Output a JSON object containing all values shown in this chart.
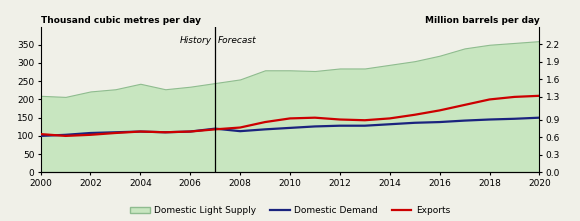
{
  "years": [
    2000,
    2001,
    2002,
    2003,
    2004,
    2005,
    2006,
    2007,
    2008,
    2009,
    2010,
    2011,
    2012,
    2013,
    2014,
    2015,
    2016,
    2017,
    2018,
    2019,
    2020
  ],
  "supply": [
    210,
    207,
    222,
    228,
    243,
    228,
    235,
    245,
    255,
    280,
    280,
    278,
    285,
    285,
    295,
    305,
    320,
    340,
    350,
    355,
    360
  ],
  "demand": [
    100,
    103,
    108,
    110,
    112,
    110,
    112,
    120,
    113,
    118,
    122,
    126,
    128,
    128,
    132,
    136,
    138,
    142,
    145,
    147,
    150
  ],
  "exports": [
    105,
    100,
    103,
    108,
    112,
    110,
    112,
    118,
    123,
    138,
    148,
    150,
    145,
    143,
    148,
    158,
    170,
    185,
    200,
    207,
    210
  ],
  "supply_color": "#c8e6c0",
  "supply_edge_color": "#8fbc8f",
  "demand_color": "#1a237e",
  "exports_color": "#cc0000",
  "history_line_x": 2007,
  "history_label": "History",
  "forecast_label": "Forecast",
  "title_left": "Thousand cubic metres per day",
  "title_right": "Million barrels per day",
  "ylim_left": [
    0,
    400
  ],
  "ylim_right": [
    0.0,
    2.5
  ],
  "yticks_left": [
    0,
    50,
    100,
    150,
    200,
    250,
    300,
    350
  ],
  "yticks_right": [
    0.0,
    0.3,
    0.6,
    0.9,
    1.3,
    1.6,
    1.9,
    2.2
  ],
  "xticks": [
    2000,
    2002,
    2004,
    2006,
    2008,
    2010,
    2012,
    2014,
    2016,
    2018,
    2020
  ],
  "xlim": [
    2000,
    2020
  ],
  "legend_supply": "Domestic Light Supply",
  "legend_demand": "Domestic Demand",
  "legend_exports": "Exports",
  "bg_color": "#f0f0e8"
}
